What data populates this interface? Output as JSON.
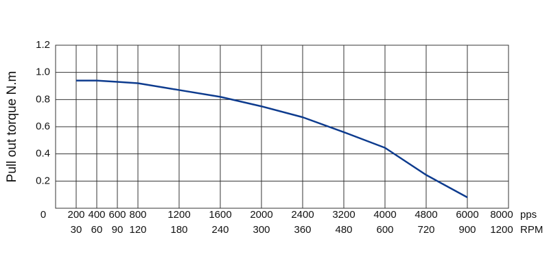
{
  "chart_data": {
    "type": "line",
    "y_axis_label": "Pull out torque N.m",
    "x_unit": "pps",
    "x2_unit": "RPM",
    "categories": [
      "0",
      "200",
      "400",
      "600",
      "800",
      "1200",
      "1600",
      "2000",
      "2400",
      "3200",
      "4000",
      "4800",
      "6000",
      "8000"
    ],
    "secondary_categories": [
      null,
      "30",
      "60",
      "90",
      "120",
      "180",
      "240",
      "300",
      "360",
      "480",
      "600",
      "720",
      "900",
      "1200"
    ],
    "series": [
      {
        "color": "#0d3b8e",
        "values": [
          null,
          0.94,
          0.94,
          0.93,
          0.92,
          0.87,
          0.82,
          0.75,
          0.67,
          0.56,
          0.445,
          0.245,
          0.08,
          null
        ]
      }
    ],
    "ylim": [
      0,
      1.2
    ],
    "yticks": [
      {
        "value": 0.2,
        "label": "0.2"
      },
      {
        "value": 0.4,
        "label": "0.4"
      },
      {
        "value": 0.6,
        "label": "0.6"
      },
      {
        "value": 0.8,
        "label": "0.8"
      },
      {
        "value": 1,
        "label": "1.0"
      },
      {
        "value": 1.2,
        "label": "1.2"
      }
    ],
    "grid": true
  }
}
